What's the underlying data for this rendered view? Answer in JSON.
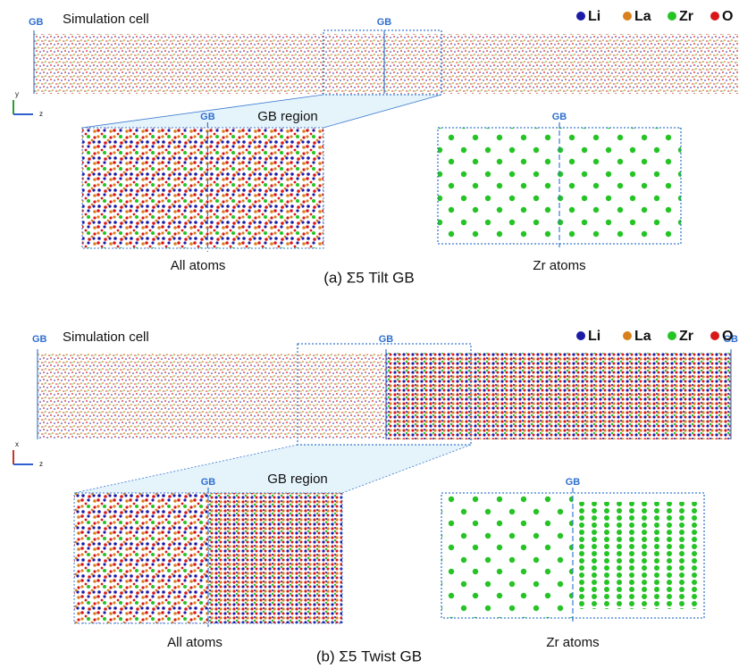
{
  "panels": [
    {
      "caption": "(a) Σ5 Tilt GB",
      "simulation_label": "Simulation cell",
      "gb_labels": [
        "GB",
        "GB"
      ],
      "legend": [
        "Li",
        "La",
        "Zr",
        "O"
      ],
      "axes": [
        "y",
        "z"
      ],
      "zoom": {
        "gb": "GB",
        "region": "GB region",
        "label": "All atoms"
      },
      "zr": {
        "gb": "GB",
        "label": "Zr atoms"
      }
    },
    {
      "caption": "(b) Σ5 Twist GB",
      "simulation_label": "Simulation cell",
      "gb_labels": [
        "GB",
        "GB",
        "GB"
      ],
      "legend": [
        "Li",
        "La",
        "Zr",
        "O"
      ],
      "axes": [
        "x",
        "z"
      ],
      "zoom": {
        "gb": "GB",
        "region": "GB region",
        "label": "All atoms"
      },
      "zr": {
        "gb": "GB",
        "label": "Zr atoms"
      }
    }
  ]
}
